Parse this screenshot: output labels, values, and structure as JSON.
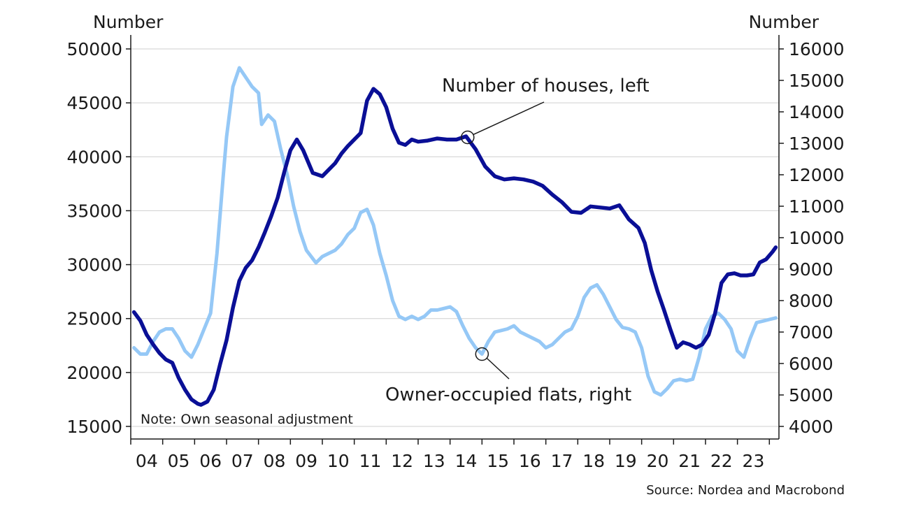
{
  "chart_data": {
    "type": "line",
    "left_axis_title": "Number",
    "right_axis_title": "Number",
    "x_ticks": [
      "04",
      "05",
      "06",
      "07",
      "08",
      "09",
      "10",
      "11",
      "12",
      "13",
      "14",
      "15",
      "16",
      "17",
      "18",
      "19",
      "20",
      "21",
      "22",
      "23"
    ],
    "left_ticks": [
      "50000",
      "45000",
      "40000",
      "35000",
      "30000",
      "25000",
      "20000",
      "15000"
    ],
    "right_ticks": [
      "16000",
      "15000",
      "14000",
      "13000",
      "12000",
      "11000",
      "10000",
      "9000",
      "8000",
      "7000",
      "6000",
      "5000",
      "4000"
    ],
    "ylim_left": [
      15000,
      50000
    ],
    "ylim_right": [
      4000,
      16000
    ],
    "xlim": [
      2004.0,
      2024.3
    ],
    "grid": true,
    "note": "Note: Own seasonal adjustment",
    "source": "Source: Nordea and Macrobond",
    "colors": {
      "houses": "#0a0f96",
      "flats": "#95c8f6",
      "axis": "#1a1a1a",
      "grid": "#cfcfcf"
    },
    "annotations": [
      {
        "text": "Number of houses, left",
        "series": "houses",
        "x": 2014.55,
        "y": 41800
      },
      {
        "text": "Owner-occupied flats, right",
        "series": "flats",
        "x": 2015.0,
        "y": 6300
      }
    ],
    "series": [
      {
        "name": "Number of houses, left",
        "axis": "left",
        "x": [
          2004.1,
          2004.3,
          2004.5,
          2004.7,
          2004.9,
          2005.1,
          2005.3,
          2005.5,
          2005.7,
          2005.9,
          2006.1,
          2006.2,
          2006.4,
          2006.6,
          2006.8,
          2007.0,
          2007.2,
          2007.4,
          2007.6,
          2007.8,
          2008.0,
          2008.2,
          2008.4,
          2008.6,
          2008.8,
          2009.0,
          2009.2,
          2009.4,
          2009.7,
          2010.0,
          2010.2,
          2010.4,
          2010.6,
          2010.8,
          2011.0,
          2011.2,
          2011.4,
          2011.6,
          2011.8,
          2012.0,
          2012.2,
          2012.4,
          2012.6,
          2012.8,
          2013.0,
          2013.3,
          2013.6,
          2013.9,
          2014.2,
          2014.5,
          2014.8,
          2015.1,
          2015.4,
          2015.7,
          2016.0,
          2016.3,
          2016.6,
          2016.9,
          2017.2,
          2017.5,
          2017.8,
          2018.1,
          2018.4,
          2018.7,
          2019.0,
          2019.3,
          2019.6,
          2019.9,
          2020.1,
          2020.3,
          2020.5,
          2020.7,
          2020.9,
          2021.1,
          2021.3,
          2021.5,
          2021.7,
          2021.9,
          2022.1,
          2022.3,
          2022.5,
          2022.7,
          2022.9,
          2023.1,
          2023.3,
          2023.5,
          2023.7,
          2023.9,
          2024.1,
          2024.2
        ],
        "values": [
          25600,
          24800,
          23500,
          22600,
          21800,
          21200,
          20900,
          19500,
          18400,
          17500,
          17100,
          17000,
          17300,
          18400,
          20800,
          23000,
          26000,
          28500,
          29700,
          30400,
          31600,
          33000,
          34500,
          36200,
          38500,
          40600,
          41600,
          40600,
          38500,
          38200,
          38800,
          39400,
          40300,
          41000,
          41600,
          42200,
          45200,
          46300,
          45800,
          44600,
          42600,
          41300,
          41100,
          41600,
          41400,
          41500,
          41700,
          41600,
          41600,
          41900,
          40700,
          39100,
          38200,
          37900,
          38000,
          37900,
          37700,
          37300,
          36500,
          35800,
          34900,
          34800,
          35400,
          35300,
          35200,
          35500,
          34200,
          33400,
          32000,
          29500,
          27500,
          25800,
          24000,
          22300,
          22800,
          22600,
          22300,
          22600,
          23500,
          25500,
          28300,
          29100,
          29200,
          29000,
          29000,
          29100,
          30200,
          30500,
          31200,
          31600
        ]
      },
      {
        "name": "Owner-occupied flats, right",
        "axis": "right",
        "x": [
          2004.1,
          2004.3,
          2004.5,
          2004.7,
          2004.9,
          2005.1,
          2005.3,
          2005.5,
          2005.7,
          2005.9,
          2006.1,
          2006.3,
          2006.5,
          2006.7,
          2006.9,
          2007.0,
          2007.2,
          2007.4,
          2007.6,
          2007.8,
          2008.0,
          2008.1,
          2008.3,
          2008.5,
          2008.7,
          2008.9,
          2009.1,
          2009.3,
          2009.5,
          2009.8,
          2010.0,
          2010.2,
          2010.4,
          2010.6,
          2010.8,
          2011.0,
          2011.2,
          2011.4,
          2011.6,
          2011.8,
          2012.0,
          2012.2,
          2012.4,
          2012.6,
          2012.8,
          2013.0,
          2013.2,
          2013.4,
          2013.6,
          2013.8,
          2014.0,
          2014.2,
          2014.4,
          2014.6,
          2014.8,
          2015.0,
          2015.2,
          2015.4,
          2015.6,
          2015.8,
          2016.0,
          2016.2,
          2016.4,
          2016.6,
          2016.8,
          2017.0,
          2017.2,
          2017.4,
          2017.6,
          2017.8,
          2018.0,
          2018.2,
          2018.4,
          2018.6,
          2018.8,
          2019.0,
          2019.2,
          2019.4,
          2019.6,
          2019.8,
          2020.0,
          2020.2,
          2020.4,
          2020.6,
          2020.8,
          2021.0,
          2021.2,
          2021.4,
          2021.6,
          2021.8,
          2022.0,
          2022.2,
          2022.4,
          2022.6,
          2022.8,
          2023.0,
          2023.2,
          2023.4,
          2023.6,
          2023.8,
          2024.0,
          2024.2
        ],
        "values": [
          6500,
          6300,
          6300,
          6700,
          7000,
          7100,
          7100,
          6800,
          6400,
          6200,
          6600,
          7100,
          7600,
          9500,
          12000,
          13200,
          14800,
          15400,
          15100,
          14800,
          14600,
          13600,
          13900,
          13700,
          12800,
          12000,
          11000,
          10200,
          9600,
          9200,
          9400,
          9500,
          9600,
          9800,
          10100,
          10300,
          10800,
          10900,
          10400,
          9500,
          8800,
          8000,
          7500,
          7400,
          7500,
          7400,
          7500,
          7700,
          7700,
          7750,
          7800,
          7650,
          7200,
          6800,
          6500,
          6300,
          6700,
          7000,
          7050,
          7100,
          7200,
          7000,
          6900,
          6800,
          6700,
          6500,
          6600,
          6800,
          7000,
          7100,
          7500,
          8100,
          8400,
          8500,
          8200,
          7800,
          7400,
          7150,
          7100,
          7000,
          6500,
          5600,
          5100,
          5000,
          5200,
          5450,
          5500,
          5450,
          5500,
          6200,
          7100,
          7500,
          7600,
          7400,
          7100,
          6400,
          6200,
          6800,
          7300,
          7350,
          7400,
          7450
        ]
      }
    ]
  }
}
